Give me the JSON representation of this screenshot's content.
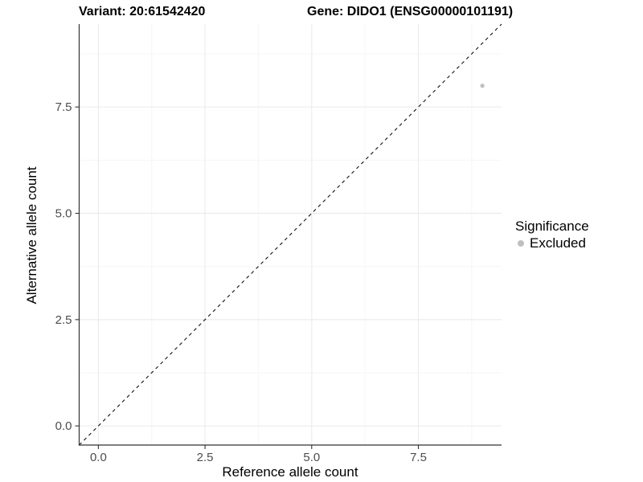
{
  "header": {
    "title_left": "Variant: 20:61542420",
    "title_right": "Gene: DIDO1 (ENSG00000101191)"
  },
  "chart_data": {
    "type": "scatter",
    "xlabel": "Reference allele count",
    "ylabel": "Alternative allele count",
    "xlim": [
      -0.45,
      9.45
    ],
    "ylim": [
      -0.45,
      9.45
    ],
    "x_tick_values": [
      0,
      2.5,
      5,
      7.5
    ],
    "y_tick_values": [
      0,
      2.5,
      5,
      7.5
    ],
    "x_tick_labels": [
      "0.0",
      "2.5",
      "5.0",
      "7.5"
    ],
    "y_tick_labels": [
      "0.0",
      "2.5",
      "5.0",
      "7.5"
    ],
    "minor_tick_values": [
      1.25,
      3.75,
      6.25,
      8.75
    ],
    "grid": true,
    "series": [
      {
        "name": "Excluded",
        "color": "#bfbfbf",
        "point_radius": 2.6,
        "points": [
          {
            "x": 9,
            "y": 8
          }
        ]
      }
    ],
    "reference_line": {
      "slope": 1,
      "intercept": 0,
      "style": "dashed",
      "color": "#111111"
    },
    "colors": {
      "grid_major": "#ececec",
      "grid_minor": "#f6f6f6",
      "axis_line": "#333333",
      "tick_mark": "#333333",
      "tick_label": "#4d4d4d"
    }
  },
  "legend": {
    "title": "Significance",
    "position": "right",
    "items": [
      {
        "label": "Excluded",
        "color": "#bfbfbf"
      }
    ]
  }
}
